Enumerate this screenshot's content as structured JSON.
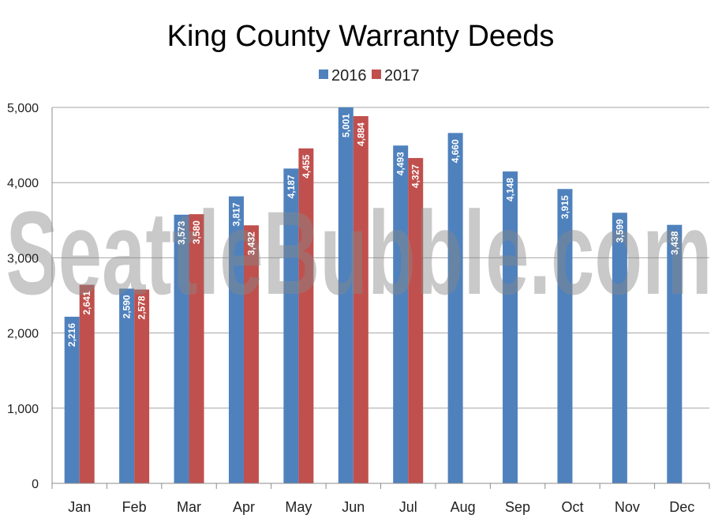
{
  "chart_data": {
    "type": "bar",
    "title": "King County Warranty Deeds",
    "xlabel": "",
    "ylabel": "",
    "categories": [
      "Jan",
      "Feb",
      "Mar",
      "Apr",
      "May",
      "Jun",
      "Jul",
      "Aug",
      "Sep",
      "Oct",
      "Nov",
      "Dec"
    ],
    "series": [
      {
        "name": "2016",
        "color": "#4f81bd",
        "values": [
          2216,
          2590,
          3573,
          3817,
          4187,
          5001,
          4493,
          4660,
          4148,
          3915,
          3599,
          3438
        ],
        "labels": [
          "2,216",
          "2,590",
          "3,573",
          "3,817",
          "4,187",
          "5,001",
          "4,493",
          "4,660",
          "4,148",
          "3,915",
          "3,599",
          "3,438"
        ]
      },
      {
        "name": "2017",
        "color": "#c0504d",
        "values": [
          2641,
          2578,
          3580,
          3432,
          4455,
          4884,
          4327,
          null,
          null,
          null,
          null,
          null
        ],
        "labels": [
          "2,641",
          "2,578",
          "3,580",
          "3,432",
          "4,455",
          "4,884",
          "4,327",
          null,
          null,
          null,
          null,
          null
        ]
      }
    ],
    "ylim": [
      0,
      5000
    ],
    "yticks": [
      0,
      1000,
      2000,
      3000,
      4000,
      5000
    ],
    "ytick_labels": [
      "0",
      "1,000",
      "2,000",
      "3,000",
      "4,000",
      "5,000"
    ],
    "grid": true,
    "legend_position": "top-center",
    "data_labels": "inside-rotated"
  },
  "watermark": "SeattleBubble.com"
}
